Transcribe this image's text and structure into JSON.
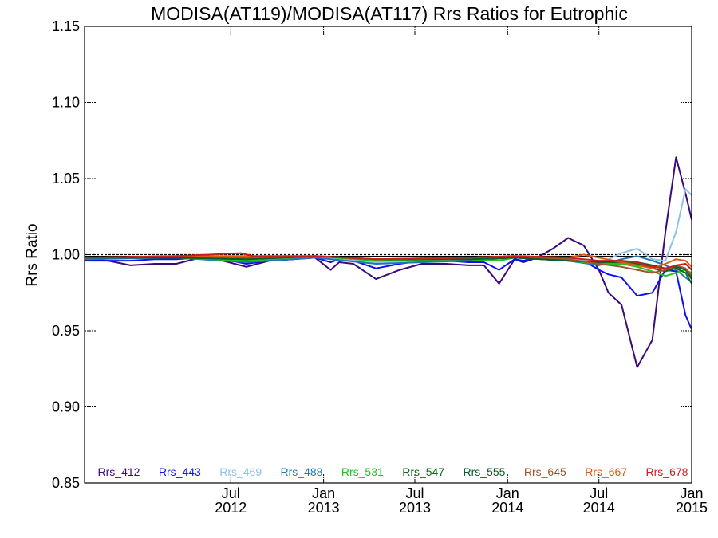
{
  "chart_data": {
    "type": "line",
    "title": "MODISA(AT119)/MODISA(AT117)  Rrs Ratios for Eutrophic",
    "ylabel": "Rrs Ratio",
    "xlabel": "",
    "ylim": [
      0.85,
      1.15
    ],
    "xlim": [
      "2011-09-15",
      "2015-01-01"
    ],
    "reference_line": 1.0,
    "grid": false,
    "legend_position": "bottom",
    "y_ticks": [
      {
        "value": 0.85,
        "label": "0.85"
      },
      {
        "value": 0.9,
        "label": "0.90"
      },
      {
        "value": 0.95,
        "label": "0.95"
      },
      {
        "value": 1.0,
        "label": "1.00"
      },
      {
        "value": 1.05,
        "label": "1.05"
      },
      {
        "value": 1.1,
        "label": "1.10"
      },
      {
        "value": 1.15,
        "label": "1.15"
      }
    ],
    "x_ticks": [
      {
        "date": "2012-07-01",
        "month": "Jul",
        "year": "2012"
      },
      {
        "date": "2013-01-01",
        "month": "Jan",
        "year": "2013"
      },
      {
        "date": "2013-07-01",
        "month": "Jul",
        "year": "2013"
      },
      {
        "date": "2014-01-01",
        "month": "Jan",
        "year": "2014"
      },
      {
        "date": "2014-07-01",
        "month": "Jul",
        "year": "2014"
      },
      {
        "date": "2015-01-01",
        "month": "Jan",
        "year": "2015"
      }
    ],
    "series": [
      {
        "name": "Rrs_412",
        "color": "#3b0a7a",
        "points": [
          [
            "2011-09-15",
            0.996
          ],
          [
            "2011-11-01",
            0.996
          ],
          [
            "2011-12-15",
            0.993
          ],
          [
            "2012-02-01",
            0.994
          ],
          [
            "2012-03-15",
            0.994
          ],
          [
            "2012-05-01",
            0.998
          ],
          [
            "2012-06-15",
            0.996
          ],
          [
            "2012-08-01",
            0.992
          ],
          [
            "2012-09-15",
            0.996
          ],
          [
            "2012-11-01",
            0.997
          ],
          [
            "2012-12-15",
            0.998
          ],
          [
            "2013-01-15",
            0.99
          ],
          [
            "2013-02-01",
            0.995
          ],
          [
            "2013-03-01",
            0.994
          ],
          [
            "2013-04-15",
            0.984
          ],
          [
            "2013-06-01",
            0.99
          ],
          [
            "2013-07-15",
            0.994
          ],
          [
            "2013-09-01",
            0.994
          ],
          [
            "2013-10-15",
            0.993
          ],
          [
            "2013-11-15",
            0.993
          ],
          [
            "2013-12-15",
            0.981
          ],
          [
            "2014-01-15",
            0.997
          ],
          [
            "2014-02-01",
            0.995
          ],
          [
            "2014-03-01",
            0.998
          ],
          [
            "2014-04-01",
            1.004
          ],
          [
            "2014-05-01",
            1.011
          ],
          [
            "2014-06-01",
            1.006
          ],
          [
            "2014-07-01",
            0.99
          ],
          [
            "2014-07-20",
            0.975
          ],
          [
            "2014-08-15",
            0.967
          ],
          [
            "2014-09-15",
            0.926
          ],
          [
            "2014-10-15",
            0.944
          ],
          [
            "2014-11-10",
            1.015
          ],
          [
            "2014-12-01",
            1.064
          ],
          [
            "2014-12-20",
            1.04
          ],
          [
            "2015-01-01",
            1.023
          ]
        ]
      },
      {
        "name": "Rrs_443",
        "color": "#0f0ff2",
        "points": [
          [
            "2011-09-15",
            0.997
          ],
          [
            "2011-11-01",
            0.996
          ],
          [
            "2011-12-15",
            0.996
          ],
          [
            "2012-02-01",
            0.997
          ],
          [
            "2012-03-15",
            0.997
          ],
          [
            "2012-05-01",
            0.998
          ],
          [
            "2012-06-15",
            0.997
          ],
          [
            "2012-08-01",
            0.994
          ],
          [
            "2012-09-15",
            0.996
          ],
          [
            "2012-11-01",
            0.997
          ],
          [
            "2012-12-15",
            0.998
          ],
          [
            "2013-01-15",
            0.995
          ],
          [
            "2013-02-01",
            0.997
          ],
          [
            "2013-03-01",
            0.996
          ],
          [
            "2013-04-15",
            0.991
          ],
          [
            "2013-06-01",
            0.994
          ],
          [
            "2013-07-15",
            0.996
          ],
          [
            "2013-09-01",
            0.996
          ],
          [
            "2013-10-15",
            0.995
          ],
          [
            "2013-11-15",
            0.995
          ],
          [
            "2013-12-15",
            0.99
          ],
          [
            "2014-01-15",
            0.997
          ],
          [
            "2014-02-01",
            0.996
          ],
          [
            "2014-03-01",
            0.998
          ],
          [
            "2014-04-01",
            0.998
          ],
          [
            "2014-05-01",
            0.998
          ],
          [
            "2014-06-01",
            0.996
          ],
          [
            "2014-07-01",
            0.99
          ],
          [
            "2014-07-20",
            0.987
          ],
          [
            "2014-08-15",
            0.985
          ],
          [
            "2014-09-15",
            0.973
          ],
          [
            "2014-10-15",
            0.975
          ],
          [
            "2014-11-10",
            0.99
          ],
          [
            "2014-12-01",
            0.989
          ],
          [
            "2014-12-20",
            0.96
          ],
          [
            "2015-01-01",
            0.951
          ]
        ]
      },
      {
        "name": "Rrs_469",
        "color": "#8ec3e6",
        "points": [
          [
            "2011-09-15",
            0.998
          ],
          [
            "2012-03-15",
            0.998
          ],
          [
            "2012-08-01",
            0.996
          ],
          [
            "2012-12-15",
            0.999
          ],
          [
            "2013-04-15",
            0.995
          ],
          [
            "2013-10-15",
            0.997
          ],
          [
            "2014-01-15",
            0.998
          ],
          [
            "2014-05-01",
            0.998
          ],
          [
            "2014-07-01",
            0.994
          ],
          [
            "2014-08-15",
            1.001
          ],
          [
            "2014-09-15",
            1.004
          ],
          [
            "2014-10-15",
            0.997
          ],
          [
            "2014-11-10",
            0.996
          ],
          [
            "2014-12-01",
            1.015
          ],
          [
            "2014-12-20",
            1.043
          ],
          [
            "2015-01-01",
            1.039
          ]
        ]
      },
      {
        "name": "Rrs_488",
        "color": "#1f77b4",
        "points": [
          [
            "2011-09-15",
            0.997
          ],
          [
            "2012-03-15",
            0.998
          ],
          [
            "2012-08-01",
            0.995
          ],
          [
            "2012-12-15",
            0.998
          ],
          [
            "2013-04-15",
            0.994
          ],
          [
            "2013-10-15",
            0.996
          ],
          [
            "2014-01-15",
            0.998
          ],
          [
            "2014-05-01",
            0.996
          ],
          [
            "2014-07-01",
            0.993
          ],
          [
            "2014-08-15",
            0.997
          ],
          [
            "2014-09-15",
            0.999
          ],
          [
            "2014-10-15",
            0.996
          ],
          [
            "2014-11-10",
            0.993
          ],
          [
            "2014-12-01",
            0.99
          ],
          [
            "2014-12-20",
            0.985
          ],
          [
            "2015-01-01",
            0.982
          ]
        ]
      },
      {
        "name": "Rrs_531",
        "color": "#22c022",
        "points": [
          [
            "2011-09-15",
            0.998
          ],
          [
            "2012-03-15",
            0.998
          ],
          [
            "2012-08-01",
            0.996
          ],
          [
            "2012-12-15",
            0.999
          ],
          [
            "2013-04-15",
            0.996
          ],
          [
            "2013-10-15",
            0.997
          ],
          [
            "2013-12-15",
            0.996
          ],
          [
            "2014-01-15",
            0.998
          ],
          [
            "2014-05-01",
            0.996
          ],
          [
            "2014-07-01",
            0.994
          ],
          [
            "2014-08-15",
            0.994
          ],
          [
            "2014-09-15",
            0.992
          ],
          [
            "2014-10-15",
            0.989
          ],
          [
            "2014-11-10",
            0.986
          ],
          [
            "2014-12-01",
            0.988
          ],
          [
            "2014-12-20",
            0.99
          ],
          [
            "2015-01-01",
            0.988
          ]
        ]
      },
      {
        "name": "Rrs_547",
        "color": "#0d6b1e",
        "points": [
          [
            "2011-09-15",
            0.998
          ],
          [
            "2012-03-15",
            0.998
          ],
          [
            "2012-08-01",
            0.997
          ],
          [
            "2012-12-15",
            0.999
          ],
          [
            "2013-04-15",
            0.997
          ],
          [
            "2013-10-15",
            0.997
          ],
          [
            "2014-01-15",
            0.998
          ],
          [
            "2014-05-01",
            0.996
          ],
          [
            "2014-07-01",
            0.995
          ],
          [
            "2014-08-15",
            0.995
          ],
          [
            "2014-09-15",
            0.994
          ],
          [
            "2014-10-15",
            0.991
          ],
          [
            "2014-11-10",
            0.989
          ],
          [
            "2014-12-01",
            0.991
          ],
          [
            "2014-12-20",
            0.988
          ],
          [
            "2015-01-01",
            0.981
          ]
        ]
      },
      {
        "name": "Rrs_555",
        "color": "#0b5a2a",
        "points": [
          [
            "2011-09-15",
            0.998
          ],
          [
            "2012-03-15",
            0.998
          ],
          [
            "2012-08-01",
            0.997
          ],
          [
            "2012-12-15",
            0.999
          ],
          [
            "2013-04-15",
            0.997
          ],
          [
            "2013-10-15",
            0.997
          ],
          [
            "2014-01-15",
            0.998
          ],
          [
            "2014-05-01",
            0.996
          ],
          [
            "2014-07-01",
            0.995
          ],
          [
            "2014-08-15",
            0.996
          ],
          [
            "2014-09-15",
            0.995
          ],
          [
            "2014-10-15",
            0.993
          ],
          [
            "2014-11-10",
            0.991
          ],
          [
            "2014-12-01",
            0.992
          ],
          [
            "2014-12-20",
            0.99
          ],
          [
            "2015-01-01",
            0.984
          ]
        ]
      },
      {
        "name": "Rrs_645",
        "color": "#a0522d",
        "points": [
          [
            "2011-09-15",
            0.998
          ],
          [
            "2012-03-15",
            0.999
          ],
          [
            "2012-08-01",
            0.998
          ],
          [
            "2012-12-15",
            0.999
          ],
          [
            "2013-04-15",
            0.997
          ],
          [
            "2013-10-15",
            0.998
          ],
          [
            "2014-01-15",
            0.999
          ],
          [
            "2014-05-01",
            0.997
          ],
          [
            "2014-07-01",
            0.994
          ],
          [
            "2014-08-15",
            0.992
          ],
          [
            "2014-09-15",
            0.99
          ],
          [
            "2014-10-15",
            0.988
          ],
          [
            "2014-11-10",
            0.99
          ],
          [
            "2014-12-01",
            0.993
          ],
          [
            "2014-12-20",
            0.991
          ],
          [
            "2015-01-01",
            0.986
          ]
        ]
      },
      {
        "name": "Rrs_667",
        "color": "#d95a10",
        "points": [
          [
            "2011-09-15",
            0.998
          ],
          [
            "2012-03-15",
            0.999
          ],
          [
            "2012-08-01",
            0.999
          ],
          [
            "2012-12-15",
            0.999
          ],
          [
            "2013-04-15",
            0.997
          ],
          [
            "2013-10-15",
            0.998
          ],
          [
            "2014-01-15",
            0.999
          ],
          [
            "2014-05-01",
            0.998
          ],
          [
            "2014-06-01",
            1.0
          ],
          [
            "2014-07-01",
            0.998
          ],
          [
            "2014-08-15",
            0.995
          ],
          [
            "2014-09-15",
            0.993
          ],
          [
            "2014-10-15",
            0.991
          ],
          [
            "2014-11-10",
            0.994
          ],
          [
            "2014-12-01",
            0.997
          ],
          [
            "2014-12-20",
            0.996
          ],
          [
            "2015-01-01",
            0.992
          ]
        ]
      },
      {
        "name": "Rrs_678",
        "color": "#c81e1e",
        "points": [
          [
            "2011-09-15",
            0.998
          ],
          [
            "2012-03-15",
            0.999
          ],
          [
            "2012-07-20",
            1.001
          ],
          [
            "2012-08-15",
            0.999
          ],
          [
            "2012-12-15",
            0.999
          ],
          [
            "2013-04-15",
            0.997
          ],
          [
            "2013-10-15",
            0.998
          ],
          [
            "2014-01-15",
            0.999
          ],
          [
            "2014-05-01",
            0.998
          ],
          [
            "2014-07-01",
            0.996
          ],
          [
            "2014-08-15",
            0.996
          ],
          [
            "2014-09-15",
            0.995
          ],
          [
            "2014-10-15",
            0.992
          ],
          [
            "2014-11-10",
            0.991
          ],
          [
            "2014-12-01",
            0.993
          ],
          [
            "2014-12-20",
            0.994
          ],
          [
            "2015-01-01",
            0.99
          ]
        ]
      }
    ]
  }
}
